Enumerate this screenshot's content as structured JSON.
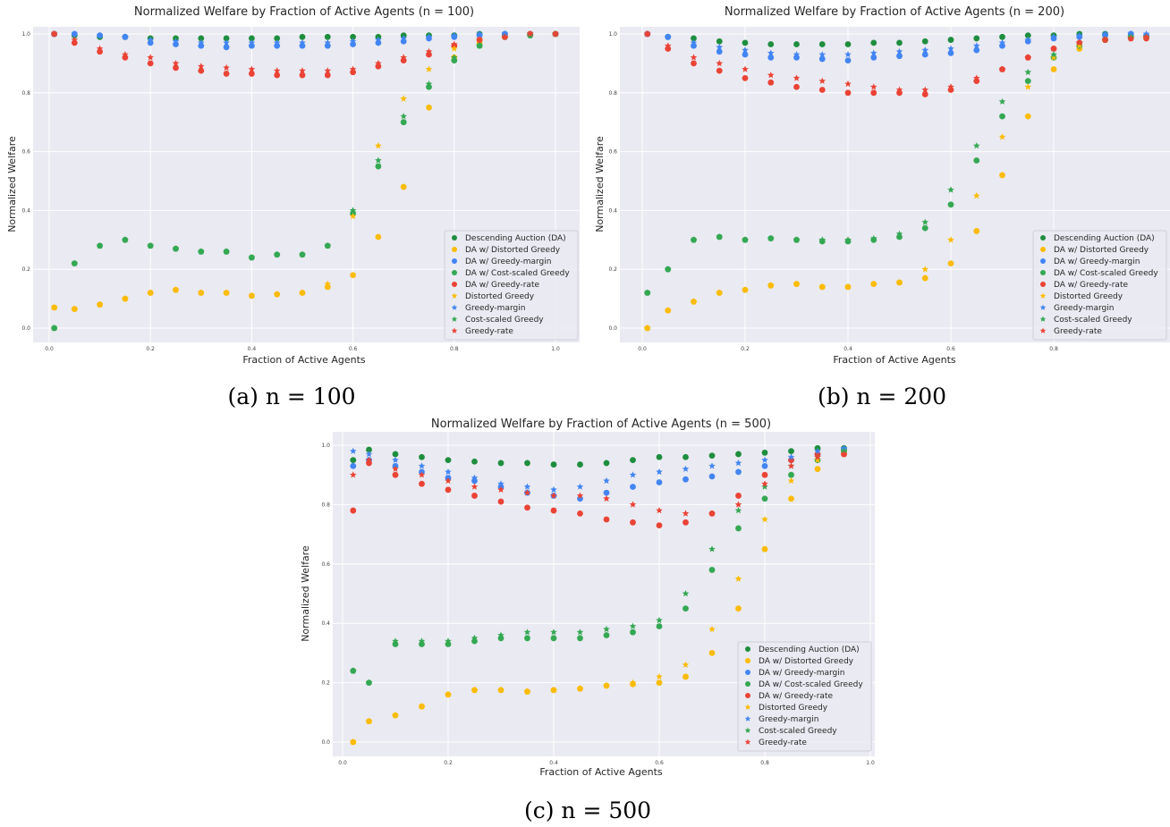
{
  "colors": {
    "da": "#1e8e3e",
    "distorted": "#fbbc05",
    "margin": "#4285f4",
    "cost": "#34a853",
    "rate": "#ea4335",
    "background": "#eaeaf2"
  },
  "legend": [
    "Descending Auction (DA)",
    "DA w/ Distorted Greedy",
    "DA w/ Greedy-margin",
    "DA w/ Cost-scaled Greedy",
    "DA w/ Greedy-rate",
    "Distorted Greedy",
    "Greedy-margin",
    "Cost-scaled Greedy",
    "Greedy-rate"
  ],
  "chart_data": [
    {
      "type": "scatter",
      "title": "Normalized Welfare by Fraction of Active Agents (n = 100)",
      "caption": "(a) n = 100",
      "xlabel": "Fraction of Active Agents",
      "ylabel": "Normalized Welfare",
      "xlim": [
        0,
        1
      ],
      "ylim": [
        0,
        1
      ],
      "grid": true,
      "legend_position": "lower-right",
      "xticks": [
        "0.0",
        "0.2",
        "0.4",
        "0.6",
        "0.8",
        "1.0"
      ],
      "yticks": [
        "0.0",
        "0.2",
        "0.4",
        "0.6",
        "0.8",
        "1.0"
      ],
      "x": [
        0.01,
        0.05,
        0.1,
        0.15,
        0.2,
        0.25,
        0.3,
        0.35,
        0.4,
        0.45,
        0.5,
        0.55,
        0.6,
        0.65,
        0.7,
        0.75,
        0.8,
        0.85,
        0.9,
        0.95,
        1.0
      ],
      "series": [
        {
          "name": "Descending Auction (DA)",
          "marker": "circle",
          "color": "da",
          "values": [
            1.0,
            0.995,
            0.99,
            0.99,
            0.985,
            0.985,
            0.985,
            0.985,
            0.985,
            0.985,
            0.99,
            0.99,
            0.99,
            0.99,
            0.995,
            0.995,
            0.995,
            1,
            1,
            1,
            1
          ]
        },
        {
          "name": "DA w/ Distorted Greedy",
          "marker": "circle",
          "color": "distorted",
          "values": [
            0.07,
            0.065,
            0.08,
            0.1,
            0.12,
            0.13,
            0.12,
            0.12,
            0.11,
            0.115,
            0.12,
            0.14,
            0.18,
            0.31,
            0.48,
            0.75,
            0.92,
            0.97,
            0.99,
            1.0,
            1.0
          ]
        },
        {
          "name": "DA w/ Greedy-margin",
          "marker": "circle",
          "color": "margin",
          "values": [
            1.0,
            1.0,
            0.995,
            0.99,
            0.97,
            0.965,
            0.96,
            0.955,
            0.96,
            0.96,
            0.96,
            0.96,
            0.965,
            0.97,
            0.975,
            0.985,
            0.99,
            0.995,
            1,
            1,
            1
          ]
        },
        {
          "name": "DA w/ Cost-scaled Greedy",
          "marker": "circle",
          "color": "cost",
          "values": [
            0.0,
            0.22,
            0.28,
            0.3,
            0.28,
            0.27,
            0.26,
            0.26,
            0.24,
            0.25,
            0.25,
            0.28,
            0.39,
            0.55,
            0.7,
            0.82,
            0.91,
            0.96,
            0.99,
            0.995,
            1.0
          ]
        },
        {
          "name": "DA w/ Greedy-rate",
          "marker": "circle",
          "color": "rate",
          "values": [
            1.0,
            0.97,
            0.94,
            0.92,
            0.9,
            0.885,
            0.875,
            0.865,
            0.865,
            0.86,
            0.86,
            0.86,
            0.87,
            0.89,
            0.91,
            0.93,
            0.96,
            0.98,
            0.99,
            1,
            1
          ]
        },
        {
          "name": "Distorted Greedy",
          "marker": "star",
          "color": "distorted",
          "values": [
            0.07,
            0.065,
            0.08,
            0.1,
            0.12,
            0.13,
            0.12,
            0.12,
            0.11,
            0.115,
            0.12,
            0.15,
            0.38,
            0.62,
            0.78,
            0.88,
            0.95,
            0.98,
            0.99,
            1,
            1
          ]
        },
        {
          "name": "Greedy-margin",
          "marker": "star",
          "color": "margin",
          "values": [
            1.0,
            1.0,
            0.995,
            0.99,
            0.98,
            0.975,
            0.97,
            0.97,
            0.97,
            0.97,
            0.97,
            0.97,
            0.975,
            0.98,
            0.985,
            0.99,
            0.995,
            1,
            1,
            1,
            1
          ]
        },
        {
          "name": "Cost-scaled Greedy",
          "marker": "star",
          "color": "cost",
          "values": [
            0.0,
            0.22,
            0.28,
            0.3,
            0.28,
            0.27,
            0.26,
            0.26,
            0.24,
            0.25,
            0.25,
            0.28,
            0.4,
            0.57,
            0.72,
            0.83,
            0.92,
            0.96,
            0.99,
            0.995,
            1
          ]
        },
        {
          "name": "Greedy-rate",
          "marker": "star",
          "color": "rate",
          "values": [
            1.0,
            0.98,
            0.95,
            0.93,
            0.92,
            0.9,
            0.89,
            0.885,
            0.88,
            0.875,
            0.875,
            0.875,
            0.88,
            0.9,
            0.92,
            0.94,
            0.965,
            0.98,
            0.99,
            1,
            1
          ]
        }
      ]
    },
    {
      "type": "scatter",
      "title": "Normalized Welfare by Fraction of Active Agents (n = 200)",
      "caption": "(b) n = 200",
      "xlabel": "Fraction of Active Agents",
      "ylabel": "Normalized Welfare",
      "xlim": [
        0,
        1
      ],
      "ylim": [
        0,
        1
      ],
      "grid": true,
      "legend_position": "lower-right",
      "xticks": [
        "0.0",
        "0.2",
        "0.4",
        "0.6",
        "0.8"
      ],
      "yticks": [
        "0.0",
        "0.2",
        "0.4",
        "0.6",
        "0.8",
        "1.0"
      ],
      "x": [
        0.01,
        0.05,
        0.1,
        0.15,
        0.2,
        0.25,
        0.3,
        0.35,
        0.4,
        0.45,
        0.5,
        0.55,
        0.6,
        0.65,
        0.7,
        0.75,
        0.8,
        0.85,
        0.9,
        0.95,
        0.98
      ],
      "series": [
        {
          "name": "Descending Auction (DA)",
          "marker": "circle",
          "color": "da",
          "values": [
            1,
            0.99,
            0.985,
            0.975,
            0.97,
            0.965,
            0.965,
            0.965,
            0.965,
            0.97,
            0.97,
            0.975,
            0.98,
            0.985,
            0.99,
            0.995,
            0.995,
            1,
            1,
            1,
            0.99
          ]
        },
        {
          "name": "DA w/ Distorted Greedy",
          "marker": "circle",
          "color": "distorted",
          "values": [
            0.0,
            0.06,
            0.09,
            0.12,
            0.13,
            0.145,
            0.15,
            0.14,
            0.14,
            0.15,
            0.155,
            0.17,
            0.22,
            0.33,
            0.52,
            0.72,
            0.88,
            0.95,
            0.98,
            0.99,
            0.99
          ]
        },
        {
          "name": "DA w/ Greedy-margin",
          "marker": "circle",
          "color": "margin",
          "values": [
            1,
            0.99,
            0.96,
            0.94,
            0.93,
            0.92,
            0.92,
            0.915,
            0.91,
            0.92,
            0.925,
            0.93,
            0.935,
            0.945,
            0.96,
            0.975,
            0.985,
            0.99,
            0.995,
            1,
            0.995
          ]
        },
        {
          "name": "DA w/ Cost-scaled Greedy",
          "marker": "circle",
          "color": "cost",
          "values": [
            0.12,
            0.2,
            0.3,
            0.31,
            0.3,
            0.305,
            0.3,
            0.295,
            0.295,
            0.3,
            0.31,
            0.34,
            0.42,
            0.57,
            0.72,
            0.84,
            0.92,
            0.96,
            0.98,
            0.99,
            0.99
          ]
        },
        {
          "name": "DA w/ Greedy-rate",
          "marker": "circle",
          "color": "rate",
          "values": [
            1,
            0.95,
            0.9,
            0.875,
            0.85,
            0.835,
            0.82,
            0.81,
            0.8,
            0.8,
            0.8,
            0.795,
            0.81,
            0.84,
            0.88,
            0.92,
            0.95,
            0.97,
            0.98,
            0.985,
            0.985
          ]
        },
        {
          "name": "Distorted Greedy",
          "marker": "star",
          "color": "distorted",
          "values": [
            0.0,
            0.06,
            0.09,
            0.12,
            0.13,
            0.145,
            0.15,
            0.14,
            0.14,
            0.15,
            0.155,
            0.2,
            0.3,
            0.45,
            0.65,
            0.82,
            0.92,
            0.96,
            0.98,
            0.99,
            0.99
          ]
        },
        {
          "name": "Greedy-margin",
          "marker": "star",
          "color": "margin",
          "values": [
            1,
            0.99,
            0.97,
            0.955,
            0.945,
            0.935,
            0.93,
            0.93,
            0.93,
            0.935,
            0.94,
            0.945,
            0.95,
            0.96,
            0.97,
            0.98,
            0.99,
            0.995,
            1,
            1,
            1
          ]
        },
        {
          "name": "Cost-scaled Greedy",
          "marker": "star",
          "color": "cost",
          "values": [
            0.12,
            0.2,
            0.3,
            0.31,
            0.3,
            0.305,
            0.3,
            0.3,
            0.3,
            0.305,
            0.32,
            0.36,
            0.47,
            0.62,
            0.77,
            0.87,
            0.93,
            0.97,
            0.98,
            0.99,
            0.99
          ]
        },
        {
          "name": "Greedy-rate",
          "marker": "star",
          "color": "rate",
          "values": [
            1,
            0.96,
            0.92,
            0.9,
            0.88,
            0.86,
            0.85,
            0.84,
            0.83,
            0.82,
            0.81,
            0.81,
            0.82,
            0.85,
            0.88,
            0.92,
            0.95,
            0.97,
            0.98,
            0.985,
            0.99
          ]
        }
      ]
    },
    {
      "type": "scatter",
      "title": "Normalized Welfare by Fraction of Active Agents (n = 500)",
      "caption": "(c) n = 500",
      "xlabel": "Fraction of Active Agents",
      "ylabel": "Normalized Welfare",
      "xlim": [
        0,
        1
      ],
      "ylim": [
        0,
        1
      ],
      "grid": true,
      "legend_position": "lower-right",
      "xticks": [
        "0.0",
        "0.2",
        "0.4",
        "0.6",
        "0.8",
        "1.0"
      ],
      "yticks": [
        "0.0",
        "0.2",
        "0.4",
        "0.6",
        "0.8",
        "1.0"
      ],
      "x": [
        0.02,
        0.05,
        0.1,
        0.15,
        0.2,
        0.25,
        0.3,
        0.35,
        0.4,
        0.45,
        0.5,
        0.55,
        0.6,
        0.65,
        0.7,
        0.75,
        0.8,
        0.85,
        0.9,
        0.95
      ],
      "series": [
        {
          "name": "Descending Auction (DA)",
          "marker": "circle",
          "color": "da",
          "values": [
            0.95,
            0.985,
            0.97,
            0.96,
            0.95,
            0.945,
            0.94,
            0.94,
            0.935,
            0.935,
            0.94,
            0.95,
            0.96,
            0.96,
            0.965,
            0.97,
            0.975,
            0.98,
            0.99,
            0.99
          ]
        },
        {
          "name": "DA w/ Distorted Greedy",
          "marker": "circle",
          "color": "distorted",
          "values": [
            0.0,
            0.07,
            0.09,
            0.12,
            0.16,
            0.175,
            0.175,
            0.17,
            0.175,
            0.18,
            0.19,
            0.195,
            0.2,
            0.22,
            0.3,
            0.45,
            0.65,
            0.82,
            0.92,
            0.97
          ]
        },
        {
          "name": "DA w/ Greedy-margin",
          "marker": "circle",
          "color": "margin",
          "values": [
            0.93,
            0.95,
            0.93,
            0.91,
            0.89,
            0.88,
            0.86,
            0.84,
            0.83,
            0.82,
            0.84,
            0.86,
            0.875,
            0.885,
            0.895,
            0.91,
            0.93,
            0.95,
            0.97,
            0.985
          ]
        },
        {
          "name": "DA w/ Cost-scaled Greedy",
          "marker": "circle",
          "color": "cost",
          "values": [
            0.24,
            0.2,
            0.33,
            0.33,
            0.33,
            0.34,
            0.35,
            0.35,
            0.35,
            0.35,
            0.36,
            0.37,
            0.39,
            0.45,
            0.58,
            0.72,
            0.82,
            0.9,
            0.95,
            0.98
          ]
        },
        {
          "name": "DA w/ Greedy-rate",
          "marker": "circle",
          "color": "rate",
          "values": [
            0.78,
            0.94,
            0.9,
            0.87,
            0.85,
            0.83,
            0.81,
            0.79,
            0.78,
            0.77,
            0.75,
            0.74,
            0.73,
            0.74,
            0.77,
            0.83,
            0.9,
            0.95,
            0.97,
            0.97
          ]
        },
        {
          "name": "Distorted Greedy",
          "marker": "star",
          "color": "distorted",
          "values": [
            0.0,
            0.07,
            0.09,
            0.12,
            0.16,
            0.175,
            0.175,
            0.17,
            0.175,
            0.18,
            0.19,
            0.2,
            0.22,
            0.26,
            0.38,
            0.55,
            0.75,
            0.88,
            0.95,
            0.98
          ]
        },
        {
          "name": "Greedy-margin",
          "marker": "star",
          "color": "margin",
          "values": [
            0.98,
            0.97,
            0.95,
            0.93,
            0.91,
            0.89,
            0.87,
            0.86,
            0.85,
            0.86,
            0.88,
            0.9,
            0.91,
            0.92,
            0.93,
            0.94,
            0.95,
            0.96,
            0.98,
            0.99
          ]
        },
        {
          "name": "Cost-scaled Greedy",
          "marker": "star",
          "color": "cost",
          "values": [
            0.24,
            0.2,
            0.34,
            0.34,
            0.34,
            0.35,
            0.36,
            0.37,
            0.37,
            0.37,
            0.38,
            0.39,
            0.41,
            0.5,
            0.65,
            0.78,
            0.86,
            0.93,
            0.96,
            0.98
          ]
        },
        {
          "name": "Greedy-rate",
          "marker": "star",
          "color": "rate",
          "values": [
            0.9,
            0.95,
            0.92,
            0.9,
            0.88,
            0.86,
            0.85,
            0.84,
            0.83,
            0.83,
            0.82,
            0.8,
            0.78,
            0.77,
            0.77,
            0.8,
            0.87,
            0.93,
            0.96,
            0.97
          ]
        }
      ]
    }
  ]
}
